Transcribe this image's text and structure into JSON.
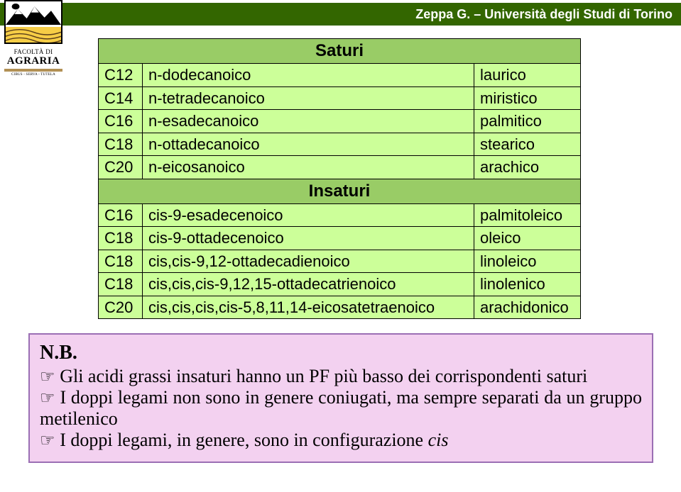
{
  "header": {
    "attribution": "Zeppa G. – Università degli Studi di Torino"
  },
  "logo2": {
    "line1": "FACOLTÀ DI",
    "line2": "AGRARIA",
    "line3": "CIBUS - SERVA - TUTELA"
  },
  "table": {
    "section1_title": "Saturi",
    "section2_title": "Insaturi",
    "rows_saturi": [
      {
        "code": "C12",
        "name": "n-dodecanoico",
        "common": "laurico"
      },
      {
        "code": "C14",
        "name": "n-tetradecanoico",
        "common": "miristico"
      },
      {
        "code": "C16",
        "name": "n-esadecanoico",
        "common": "palmitico"
      },
      {
        "code": "C18",
        "name": "n-ottadecanoico",
        "common": "stearico"
      },
      {
        "code": "C20",
        "name": "n-eicosanoico",
        "common": "arachico"
      }
    ],
    "rows_insaturi": [
      {
        "code": "C16",
        "name": "cis-9-esadecenoico",
        "common": "palmitoleico"
      },
      {
        "code": "C18",
        "name": "cis-9-ottadecenoico",
        "common": "oleico"
      },
      {
        "code": "C18",
        "name": "cis,cis-9,12-ottadecadienoico",
        "common": "linoleico"
      },
      {
        "code": "C18",
        "name": "cis,cis,cis-9,12,15-ottadecatrienoico",
        "common": "linolenico"
      },
      {
        "code": "C20",
        "name": "cis,cis,cis,cis-5,8,11,14-eicosatetraenoico",
        "common": "arachidonico"
      }
    ]
  },
  "note": {
    "nb": "N.B.",
    "points": [
      {
        "pre": "Gli acidi grassi insaturi hanno un PF più basso dei corrispondenti saturi"
      },
      {
        "pre": "I doppi legami non sono in genere coniugati, ma sempre separati da un gruppo metilenico"
      },
      {
        "pre": "I doppi legami, in genere, sono in configurazione ",
        "ital": "cis"
      }
    ]
  }
}
